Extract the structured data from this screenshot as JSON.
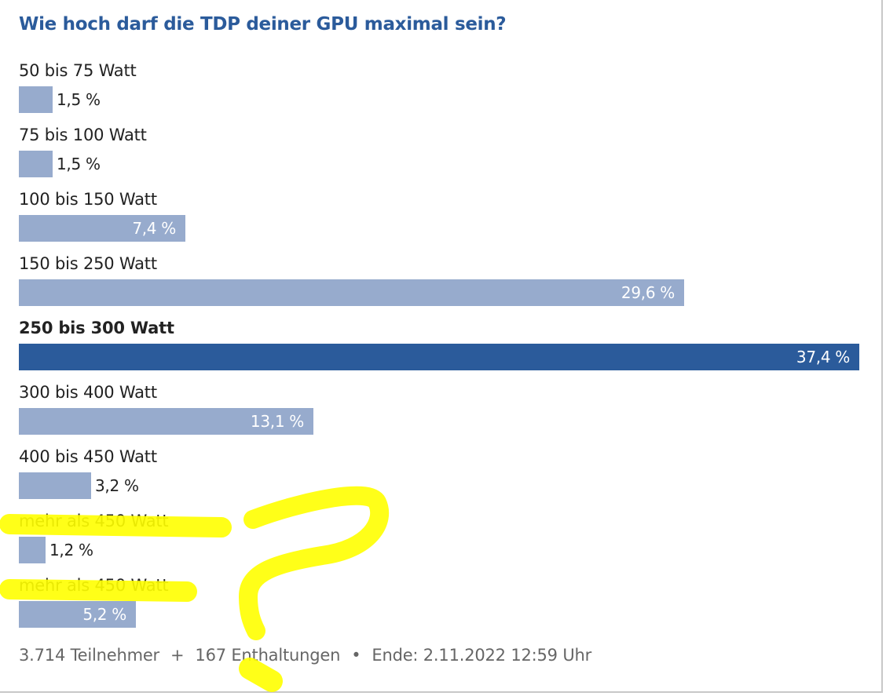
{
  "poll": {
    "title": "Wie hoch darf die TDP deiner GPU maximal sein?",
    "options": [
      {
        "label": "50 bis 75 Watt",
        "percent": 1.5,
        "value_text": "1,5 %",
        "selected": false
      },
      {
        "label": "75 bis 100 Watt",
        "percent": 1.5,
        "value_text": "1,5 %",
        "selected": false
      },
      {
        "label": "100 bis 150 Watt",
        "percent": 7.4,
        "value_text": "7,4 %",
        "selected": false
      },
      {
        "label": "150 bis 250 Watt",
        "percent": 29.6,
        "value_text": "29,6 %",
        "selected": false
      },
      {
        "label": "250 bis 300 Watt",
        "percent": 37.4,
        "value_text": "37,4 %",
        "selected": true
      },
      {
        "label": "300 bis 400 Watt",
        "percent": 13.1,
        "value_text": "13,1 %",
        "selected": false
      },
      {
        "label": "400 bis 450 Watt",
        "percent": 3.2,
        "value_text": "3,2 %",
        "selected": false
      },
      {
        "label": "mehr als 450 Watt",
        "percent": 1.2,
        "value_text": "1,2 %",
        "selected": false
      },
      {
        "label": "mehr als 450 Watt",
        "percent": 5.2,
        "value_text": "5,2 %",
        "selected": false
      }
    ],
    "footer": {
      "participants": "3.714 Teilnehmer",
      "sep1": "+",
      "abstentions": "167 Enthaltungen",
      "sep2": "•",
      "end": "Ende: 2.11.2022 12:59 Uhr"
    }
  },
  "colors": {
    "title": "#2b5b9b",
    "bar_default": "#97abcd",
    "bar_selected": "#2b5b9b",
    "highlighter": "#ffff00"
  },
  "chart_data": {
    "type": "bar",
    "orientation": "horizontal",
    "title": "Wie hoch darf die TDP deiner GPU maximal sein?",
    "categories": [
      "50 bis 75 Watt",
      "75 bis 100 Watt",
      "100 bis 150 Watt",
      "150 bis 250 Watt",
      "250 bis 300 Watt",
      "300 bis 400 Watt",
      "400 bis 450 Watt",
      "mehr als 450 Watt",
      "mehr als 450 Watt"
    ],
    "values": [
      1.5,
      1.5,
      7.4,
      29.6,
      37.4,
      13.1,
      3.2,
      1.2,
      5.2
    ],
    "unit": "%",
    "highlighted_category_index": 4,
    "xlim": [
      0,
      37.4
    ],
    "grid": false,
    "legend": "none"
  }
}
